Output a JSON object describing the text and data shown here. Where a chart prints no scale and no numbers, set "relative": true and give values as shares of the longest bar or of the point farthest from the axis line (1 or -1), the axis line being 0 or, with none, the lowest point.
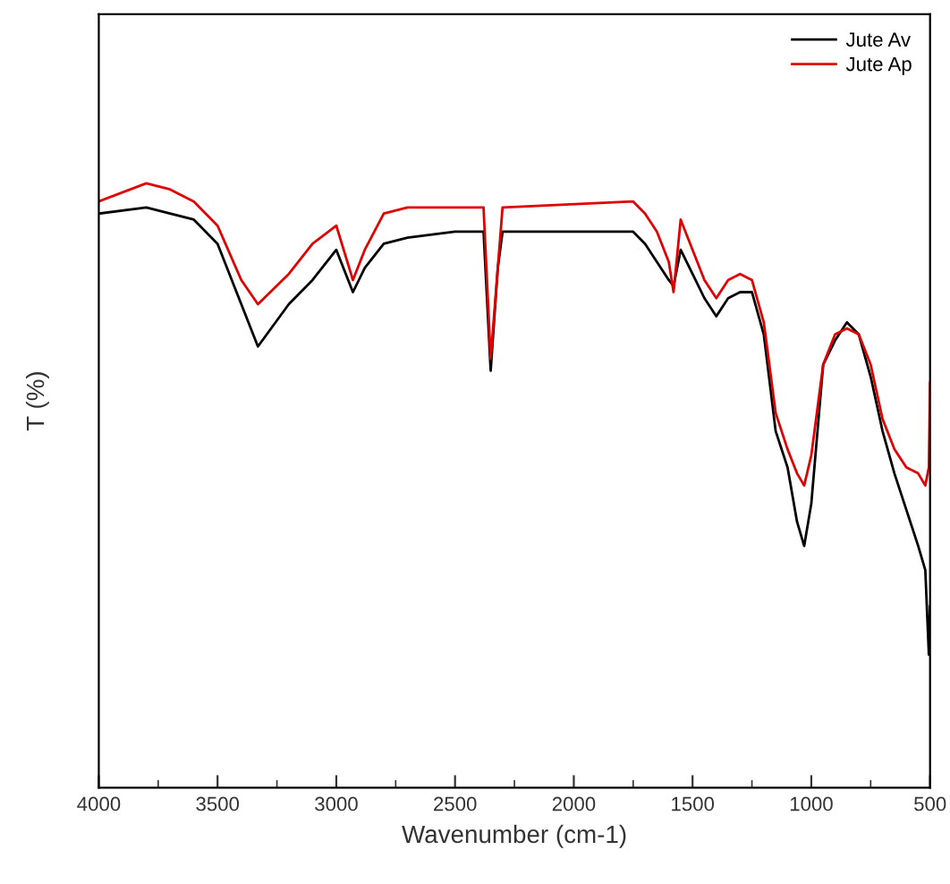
{
  "chart_data": {
    "type": "line",
    "relative": true,
    "xlabel": "Wavenumber (cm-1)",
    "ylabel": "T (%)",
    "x": [
      4000,
      3800,
      3700,
      3600,
      3500,
      3400,
      3330,
      3200,
      3100,
      3000,
      2930,
      2880,
      2800,
      2700,
      2500,
      2400,
      2380,
      2350,
      2320,
      2300,
      1750,
      1700,
      1650,
      1600,
      1580,
      1550,
      1500,
      1450,
      1400,
      1350,
      1300,
      1250,
      1200,
      1150,
      1100,
      1060,
      1030,
      1000,
      950,
      900,
      850,
      800,
      750,
      700,
      650,
      600,
      550,
      520,
      505,
      500
    ],
    "xlim": [
      4000,
      500
    ],
    "xticks": [
      4000,
      3500,
      3000,
      2500,
      2000,
      1500,
      1000,
      500
    ],
    "tick_labels": "x",
    "legend": "top right",
    "grid": false,
    "series": [
      {
        "name": "Jute Av",
        "color": "#000000",
        "values": [
          0.95,
          0.96,
          0.95,
          0.94,
          0.9,
          0.8,
          0.73,
          0.8,
          0.84,
          0.89,
          0.82,
          0.86,
          0.9,
          0.91,
          0.92,
          0.92,
          0.92,
          0.69,
          0.86,
          0.92,
          0.92,
          0.9,
          0.87,
          0.84,
          0.83,
          0.89,
          0.85,
          0.81,
          0.78,
          0.81,
          0.82,
          0.82,
          0.75,
          0.59,
          0.53,
          0.44,
          0.4,
          0.47,
          0.7,
          0.74,
          0.77,
          0.75,
          0.68,
          0.59,
          0.52,
          0.46,
          0.4,
          0.36,
          0.22,
          0.3
        ]
      },
      {
        "name": "Jute Ap",
        "color": "#e00000",
        "values": [
          0.97,
          1.0,
          0.99,
          0.97,
          0.93,
          0.84,
          0.8,
          0.85,
          0.9,
          0.93,
          0.84,
          0.89,
          0.95,
          0.96,
          0.96,
          0.96,
          0.96,
          0.71,
          0.86,
          0.96,
          0.97,
          0.95,
          0.92,
          0.87,
          0.82,
          0.94,
          0.89,
          0.84,
          0.81,
          0.84,
          0.85,
          0.84,
          0.77,
          0.62,
          0.56,
          0.52,
          0.5,
          0.55,
          0.7,
          0.75,
          0.76,
          0.75,
          0.7,
          0.61,
          0.56,
          0.53,
          0.52,
          0.5,
          0.53,
          0.67
        ]
      }
    ]
  }
}
